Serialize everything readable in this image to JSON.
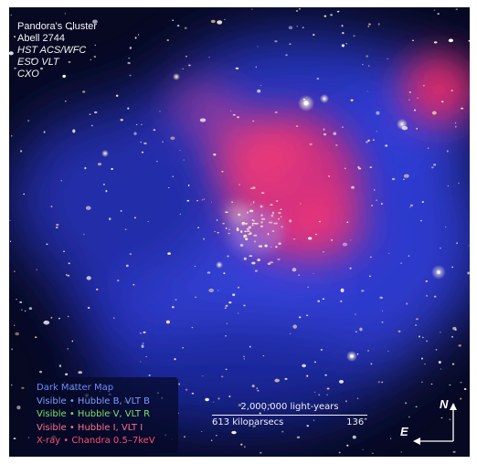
{
  "image": {
    "description_icon": "astronomical-composite-image",
    "colors": {
      "background": "#070922",
      "dark_matter": "#3a4cff",
      "xray": "#ff2f6a"
    }
  },
  "credits": {
    "title": "Pandora's Cluster",
    "name": "Abell 2744",
    "line1": "HST ACS/WFC",
    "line2": "ESO VLT",
    "line3": "CXO"
  },
  "legend": {
    "dark_matter": "Dark Matter Map",
    "visible_b": "Visible • Hubble B, VLT B",
    "visible_v": "Visible • Hubble V, VLT R",
    "visible_i": "Visible • Hubble I, VLT I",
    "xray": "X-ray • Chandra 0.5–7keV"
  },
  "scale": {
    "light_years": "2,000,000 light-years",
    "kiloparsecs": "613 kiloparsecs",
    "arcsec": "136″"
  },
  "compass": {
    "north": "N",
    "east": "E"
  }
}
